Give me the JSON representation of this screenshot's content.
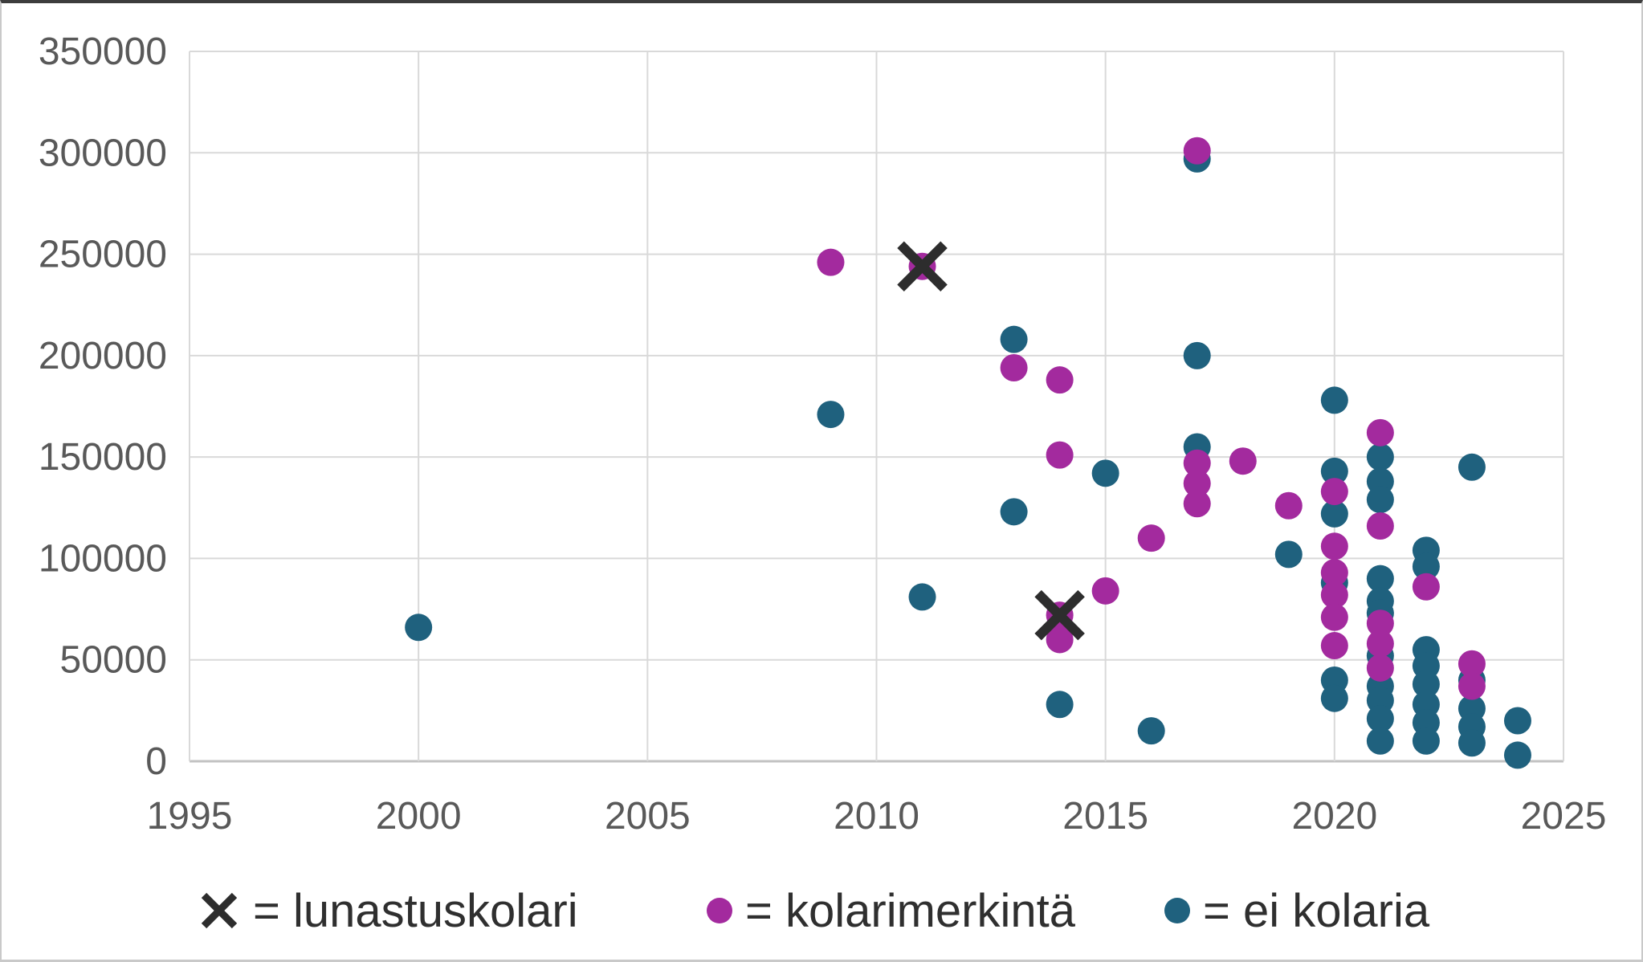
{
  "chart_data": {
    "type": "scatter",
    "title": "",
    "xlabel": "",
    "ylabel": "",
    "xlim": [
      1995,
      2025
    ],
    "ylim": [
      0,
      350000
    ],
    "x_ticks": [
      1995,
      2000,
      2005,
      2010,
      2015,
      2020,
      2025
    ],
    "y_ticks": [
      0,
      50000,
      100000,
      150000,
      200000,
      250000,
      300000,
      350000
    ],
    "grid": true,
    "legend_position": "bottom",
    "series": [
      {
        "name": "ei kolaria",
        "marker": "circle",
        "color": "#1f617e",
        "points": [
          [
            2000,
            66000
          ],
          [
            2009,
            171000
          ],
          [
            2011,
            81000
          ],
          [
            2013,
            208000
          ],
          [
            2013,
            123000
          ],
          [
            2014,
            28000
          ],
          [
            2015,
            142000
          ],
          [
            2016,
            15000
          ],
          [
            2017,
            297000
          ],
          [
            2017,
            200000
          ],
          [
            2017,
            155000
          ],
          [
            2019,
            102000
          ],
          [
            2020,
            178000
          ],
          [
            2020,
            143000
          ],
          [
            2020,
            122000
          ],
          [
            2020,
            88000
          ],
          [
            2020,
            40000
          ],
          [
            2020,
            31000
          ],
          [
            2021,
            150000
          ],
          [
            2021,
            138000
          ],
          [
            2021,
            129000
          ],
          [
            2021,
            90000
          ],
          [
            2021,
            79000
          ],
          [
            2021,
            73000
          ],
          [
            2021,
            52000
          ],
          [
            2021,
            37000
          ],
          [
            2021,
            30000
          ],
          [
            2021,
            21000
          ],
          [
            2021,
            10000
          ],
          [
            2022,
            104000
          ],
          [
            2022,
            96000
          ],
          [
            2022,
            55000
          ],
          [
            2022,
            47000
          ],
          [
            2022,
            38000
          ],
          [
            2022,
            28000
          ],
          [
            2022,
            19000
          ],
          [
            2022,
            10000
          ],
          [
            2023,
            145000
          ],
          [
            2023,
            40000
          ],
          [
            2023,
            26000
          ],
          [
            2023,
            17000
          ],
          [
            2023,
            9000
          ],
          [
            2024,
            20000
          ],
          [
            2024,
            3000
          ]
        ]
      },
      {
        "name": "kolarimerkintä",
        "marker": "circle",
        "color": "#a32a9e",
        "points": [
          [
            2009,
            246000
          ],
          [
            2011,
            244000
          ],
          [
            2013,
            194000
          ],
          [
            2014,
            188000
          ],
          [
            2014,
            151000
          ],
          [
            2014,
            72000
          ],
          [
            2014,
            60000
          ],
          [
            2015,
            84000
          ],
          [
            2016,
            110000
          ],
          [
            2017,
            301000
          ],
          [
            2017,
            147000
          ],
          [
            2017,
            137000
          ],
          [
            2017,
            127000
          ],
          [
            2018,
            148000
          ],
          [
            2019,
            126000
          ],
          [
            2020,
            133000
          ],
          [
            2020,
            106000
          ],
          [
            2020,
            93000
          ],
          [
            2020,
            82000
          ],
          [
            2020,
            71000
          ],
          [
            2020,
            57000
          ],
          [
            2021,
            162000
          ],
          [
            2021,
            116000
          ],
          [
            2021,
            68000
          ],
          [
            2021,
            58000
          ],
          [
            2021,
            46000
          ],
          [
            2022,
            86000
          ],
          [
            2023,
            48000
          ],
          [
            2023,
            37000
          ]
        ]
      },
      {
        "name": "lunastuskolari",
        "marker": "x",
        "color": "#2d2d2d",
        "points": [
          [
            2011,
            244000
          ],
          [
            2014,
            72000
          ]
        ]
      }
    ],
    "legend": {
      "items": [
        {
          "symbol": "x-marker",
          "color": "#2d2d2d",
          "label": "= lunastuskolari"
        },
        {
          "symbol": "dot",
          "color": "#a32a9e",
          "label": "= kolarimerkintä"
        },
        {
          "symbol": "dot",
          "color": "#1f617e",
          "label": "= ei kolaria"
        }
      ]
    }
  },
  "style_colors": {
    "gridline": "#d9d9d9",
    "axis_line": "#c2c2c2",
    "tick_label": "#595959",
    "legend_text": "#2f2f2f"
  }
}
